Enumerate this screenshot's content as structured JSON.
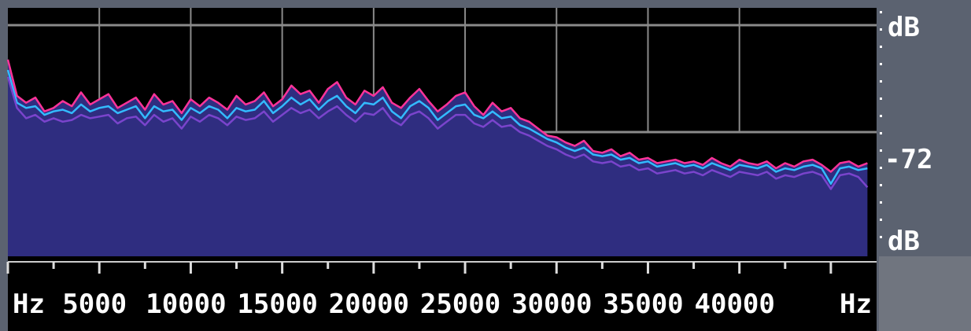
{
  "chart_data": {
    "type": "area",
    "title": "",
    "xlabel": "Hz",
    "ylabel": "dB",
    "xlim": [
      0,
      47500
    ],
    "ylim": [
      -144,
      0
    ],
    "x_ticks": [
      5000,
      10000,
      15000,
      20000,
      25000,
      30000,
      35000,
      40000
    ],
    "x_tick_labels": [
      "5000",
      "10000",
      "15000",
      "20000",
      "25000",
      "30000",
      "35000",
      "40000"
    ],
    "x_axis_end_labels": {
      "left": "Hz",
      "right": "Hz"
    },
    "y_axis_labels": {
      "top": "dB",
      "middle": "-72",
      "bottom": "dB"
    },
    "y_gridlines": [
      -10,
      -72
    ],
    "grid": true,
    "colors": {
      "background": "#000000",
      "fill": "#2f2d80",
      "trace_pink": "#ff3399",
      "trace_cyan": "#33bbff",
      "trace_violet": "#7a44cc",
      "grid": "#8a8a8a",
      "frame": "#5b6270"
    },
    "x_hz": [
      0,
      500,
      1000,
      1500,
      2000,
      2500,
      3000,
      3500,
      4000,
      4500,
      5000,
      5500,
      6000,
      6500,
      7000,
      7500,
      8000,
      8500,
      9000,
      9500,
      10000,
      10500,
      11000,
      11500,
      12000,
      12500,
      13000,
      13500,
      14000,
      14500,
      15000,
      15500,
      16000,
      16500,
      17000,
      17500,
      18000,
      18500,
      19000,
      19500,
      20000,
      20500,
      21000,
      21500,
      22000,
      22500,
      23000,
      23500,
      24000,
      24500,
      25000,
      25500,
      26000,
      26500,
      27000,
      27500,
      28000,
      28500,
      29000,
      29500,
      30000,
      30500,
      31000,
      31500,
      32000,
      32500,
      33000,
      33500,
      34000,
      34500,
      35000,
      35500,
      36000,
      36500,
      37000,
      37500,
      38000,
      38500,
      39000,
      39500,
      40000,
      40500,
      41000,
      41500,
      42000,
      42500,
      43000,
      43500,
      44000,
      44500,
      45000,
      45500,
      46000,
      46500,
      47000
    ],
    "series": [
      {
        "color": "#ff3399",
        "values": [
          -30,
          -51,
          -55,
          -52,
          -60,
          -58,
          -54,
          -57,
          -49,
          -56,
          -53,
          -50,
          -58,
          -55,
          -52,
          -59,
          -50,
          -56,
          -54,
          -61,
          -53,
          -57,
          -52,
          -55,
          -59,
          -51,
          -56,
          -54,
          -49,
          -57,
          -53,
          -45,
          -50,
          -48,
          -55,
          -47,
          -43,
          -52,
          -56,
          -48,
          -51,
          -46,
          -55,
          -58,
          -52,
          -47,
          -54,
          -60,
          -56,
          -51,
          -49,
          -57,
          -62,
          -55,
          -60,
          -58,
          -64,
          -66,
          -70,
          -74,
          -75,
          -78,
          -80,
          -77,
          -83,
          -84,
          -82,
          -86,
          -84,
          -88,
          -87,
          -90,
          -89,
          -88,
          -90,
          -89,
          -91,
          -87,
          -90,
          -92,
          -88,
          -90,
          -91,
          -89,
          -93,
          -90,
          -92,
          -89,
          -88,
          -91,
          -95,
          -90,
          -89,
          -92,
          -90
        ]
      },
      {
        "color": "#33bbff",
        "values": [
          -36,
          -55,
          -58,
          -57,
          -62,
          -60,
          -59,
          -61,
          -56,
          -60,
          -58,
          -57,
          -61,
          -59,
          -57,
          -64,
          -57,
          -60,
          -59,
          -65,
          -58,
          -61,
          -57,
          -59,
          -64,
          -58,
          -60,
          -59,
          -54,
          -61,
          -57,
          -52,
          -56,
          -53,
          -59,
          -54,
          -51,
          -57,
          -61,
          -55,
          -56,
          -52,
          -60,
          -64,
          -57,
          -54,
          -58,
          -65,
          -61,
          -57,
          -56,
          -62,
          -64,
          -60,
          -64,
          -63,
          -68,
          -70,
          -73,
          -76,
          -78,
          -81,
          -83,
          -81,
          -85,
          -86,
          -85,
          -88,
          -87,
          -90,
          -89,
          -92,
          -91,
          -90,
          -92,
          -91,
          -93,
          -90,
          -92,
          -94,
          -91,
          -92,
          -93,
          -91,
          -95,
          -93,
          -94,
          -92,
          -91,
          -93,
          -102,
          -93,
          -92,
          -94,
          -93
        ]
      },
      {
        "color": "#7a44cc",
        "values": [
          -40,
          -58,
          -64,
          -62,
          -66,
          -64,
          -66,
          -65,
          -62,
          -64,
          -63,
          -62,
          -67,
          -64,
          -63,
          -68,
          -62,
          -66,
          -64,
          -70,
          -63,
          -66,
          -62,
          -64,
          -68,
          -63,
          -65,
          -64,
          -60,
          -66,
          -62,
          -58,
          -61,
          -59,
          -64,
          -60,
          -57,
          -62,
          -66,
          -61,
          -62,
          -58,
          -65,
          -68,
          -62,
          -60,
          -64,
          -70,
          -66,
          -62,
          -62,
          -67,
          -69,
          -65,
          -69,
          -68,
          -72,
          -74,
          -77,
          -80,
          -82,
          -85,
          -87,
          -85,
          -89,
          -90,
          -89,
          -92,
          -91,
          -94,
          -93,
          -96,
          -95,
          -94,
          -96,
          -95,
          -97,
          -94,
          -96,
          -98,
          -95,
          -96,
          -97,
          -95,
          -99,
          -97,
          -98,
          -96,
          -95,
          -97,
          -105,
          -97,
          -96,
          -98,
          -104
        ]
      }
    ]
  }
}
